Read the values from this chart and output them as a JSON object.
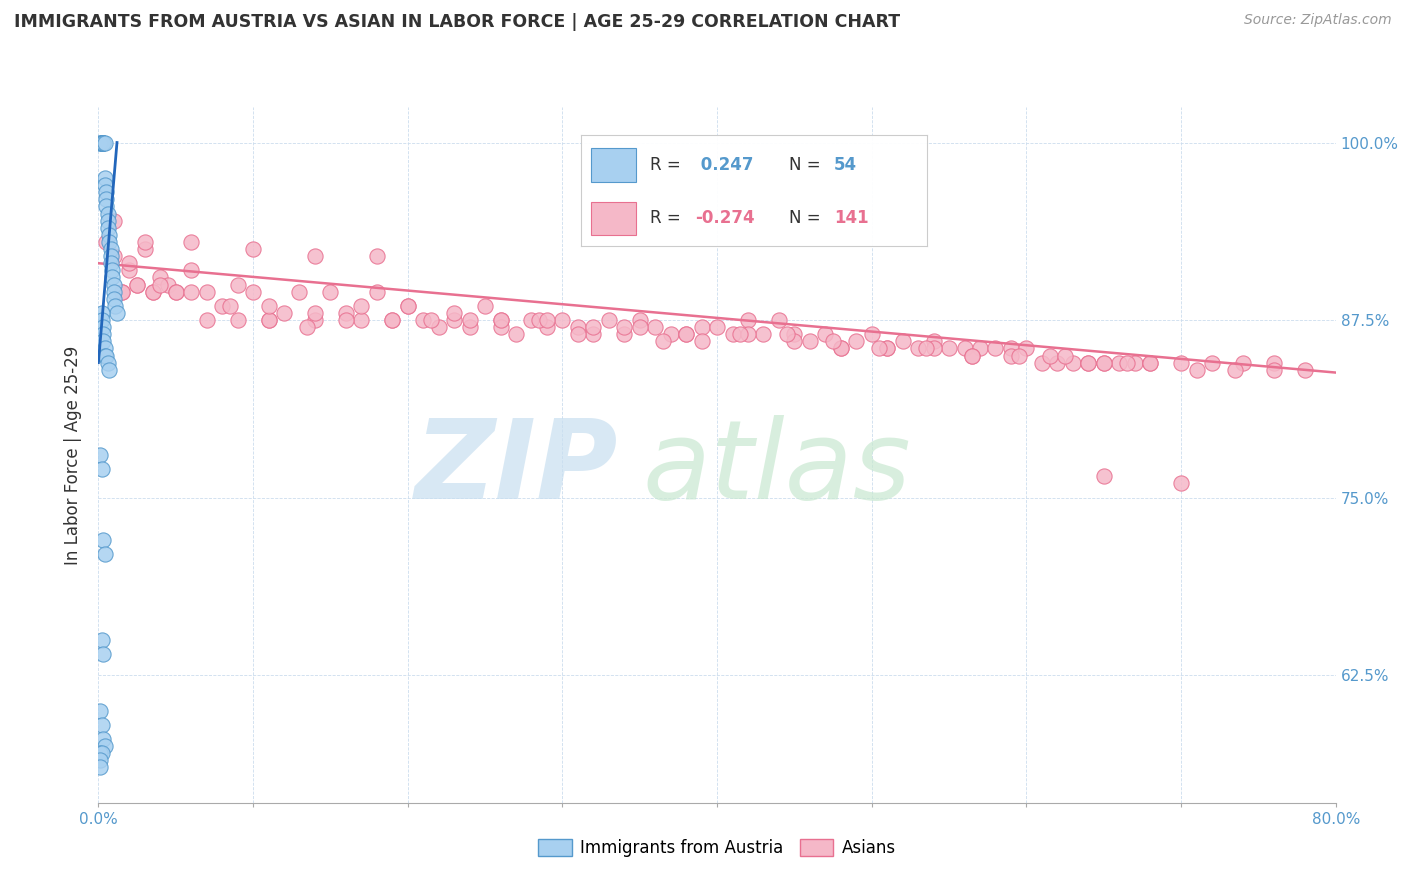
{
  "title": "IMMIGRANTS FROM AUSTRIA VS ASIAN IN LABOR FORCE | AGE 25-29 CORRELATION CHART",
  "source": "Source: ZipAtlas.com",
  "ylabel": "In Labor Force | Age 25-29",
  "xmin": 0.0,
  "xmax": 0.8,
  "ymin": 0.535,
  "ymax": 1.025,
  "x_ticks": [
    0.0,
    0.1,
    0.2,
    0.3,
    0.4,
    0.5,
    0.6,
    0.7,
    0.8
  ],
  "x_tick_labels_show": [
    "0.0%",
    "",
    "",
    "",
    "",
    "",
    "",
    "",
    "80.0%"
  ],
  "y_ticks": [
    0.625,
    0.75,
    0.875,
    1.0
  ],
  "y_tick_labels": [
    "62.5%",
    "75.0%",
    "87.5%",
    "100.0%"
  ],
  "austria_R": 0.247,
  "austria_N": 54,
  "asian_R": -0.274,
  "asian_N": 141,
  "austria_color": "#a8d0f0",
  "asian_color": "#f5b8c8",
  "austria_edge_color": "#5599cc",
  "asian_edge_color": "#e87090",
  "austria_line_color": "#2266bb",
  "asian_line_color": "#e87090",
  "watermark_zip_color": "#c8dff0",
  "watermark_atlas_color": "#c8e8d0",
  "austria_scatter_x": [
    0.001,
    0.001,
    0.002,
    0.002,
    0.002,
    0.003,
    0.003,
    0.003,
    0.003,
    0.004,
    0.004,
    0.004,
    0.005,
    0.005,
    0.005,
    0.006,
    0.006,
    0.006,
    0.007,
    0.007,
    0.008,
    0.008,
    0.008,
    0.009,
    0.009,
    0.01,
    0.01,
    0.01,
    0.011,
    0.012,
    0.002,
    0.002,
    0.003,
    0.003,
    0.003,
    0.004,
    0.004,
    0.005,
    0.006,
    0.007,
    0.001,
    0.002,
    0.003,
    0.004,
    0.002,
    0.003,
    0.001,
    0.002,
    0.003,
    0.004,
    0.001,
    0.002,
    0.001,
    0.001
  ],
  "austria_scatter_y": [
    1.0,
    1.0,
    1.0,
    1.0,
    1.0,
    1.0,
    1.0,
    1.0,
    1.0,
    1.0,
    0.975,
    0.97,
    0.965,
    0.96,
    0.955,
    0.95,
    0.945,
    0.94,
    0.935,
    0.93,
    0.925,
    0.92,
    0.915,
    0.91,
    0.905,
    0.9,
    0.895,
    0.89,
    0.885,
    0.88,
    0.88,
    0.875,
    0.87,
    0.865,
    0.86,
    0.855,
    0.85,
    0.85,
    0.845,
    0.84,
    0.78,
    0.77,
    0.72,
    0.71,
    0.65,
    0.64,
    0.6,
    0.59,
    0.58,
    0.575,
    0.57,
    0.57,
    0.565,
    0.56
  ],
  "asian_scatter_x": [
    0.005,
    0.01,
    0.015,
    0.02,
    0.025,
    0.03,
    0.035,
    0.04,
    0.045,
    0.05,
    0.06,
    0.07,
    0.08,
    0.09,
    0.1,
    0.11,
    0.12,
    0.13,
    0.14,
    0.15,
    0.16,
    0.17,
    0.18,
    0.19,
    0.2,
    0.21,
    0.22,
    0.23,
    0.24,
    0.25,
    0.26,
    0.27,
    0.28,
    0.29,
    0.3,
    0.31,
    0.32,
    0.33,
    0.34,
    0.35,
    0.36,
    0.37,
    0.38,
    0.39,
    0.4,
    0.41,
    0.42,
    0.43,
    0.44,
    0.45,
    0.46,
    0.47,
    0.48,
    0.49,
    0.5,
    0.51,
    0.52,
    0.53,
    0.54,
    0.55,
    0.56,
    0.57,
    0.58,
    0.59,
    0.6,
    0.61,
    0.62,
    0.63,
    0.64,
    0.65,
    0.66,
    0.67,
    0.68,
    0.7,
    0.72,
    0.74,
    0.76,
    0.015,
    0.025,
    0.035,
    0.05,
    0.07,
    0.09,
    0.11,
    0.135,
    0.16,
    0.19,
    0.215,
    0.24,
    0.26,
    0.285,
    0.31,
    0.34,
    0.365,
    0.39,
    0.42,
    0.45,
    0.48,
    0.51,
    0.54,
    0.565,
    0.59,
    0.615,
    0.64,
    0.665,
    0.02,
    0.04,
    0.06,
    0.085,
    0.11,
    0.14,
    0.17,
    0.2,
    0.23,
    0.26,
    0.29,
    0.32,
    0.35,
    0.38,
    0.415,
    0.445,
    0.475,
    0.505,
    0.535,
    0.565,
    0.595,
    0.625,
    0.65,
    0.68,
    0.71,
    0.735,
    0.76,
    0.78,
    0.01,
    0.03,
    0.06,
    0.1,
    0.14,
    0.18,
    0.65,
    0.7
  ],
  "asian_scatter_y": [
    0.93,
    0.92,
    0.895,
    0.91,
    0.9,
    0.925,
    0.895,
    0.905,
    0.9,
    0.895,
    0.91,
    0.895,
    0.885,
    0.9,
    0.895,
    0.875,
    0.88,
    0.895,
    0.875,
    0.895,
    0.88,
    0.875,
    0.895,
    0.875,
    0.885,
    0.875,
    0.87,
    0.875,
    0.87,
    0.885,
    0.875,
    0.865,
    0.875,
    0.87,
    0.875,
    0.87,
    0.865,
    0.875,
    0.865,
    0.875,
    0.87,
    0.865,
    0.865,
    0.87,
    0.87,
    0.865,
    0.875,
    0.865,
    0.875,
    0.865,
    0.86,
    0.865,
    0.855,
    0.86,
    0.865,
    0.855,
    0.86,
    0.855,
    0.86,
    0.855,
    0.855,
    0.855,
    0.855,
    0.855,
    0.855,
    0.845,
    0.845,
    0.845,
    0.845,
    0.845,
    0.845,
    0.845,
    0.845,
    0.845,
    0.845,
    0.845,
    0.845,
    0.895,
    0.9,
    0.895,
    0.895,
    0.875,
    0.875,
    0.875,
    0.87,
    0.875,
    0.875,
    0.875,
    0.875,
    0.87,
    0.875,
    0.865,
    0.87,
    0.86,
    0.86,
    0.865,
    0.86,
    0.855,
    0.855,
    0.855,
    0.85,
    0.85,
    0.85,
    0.845,
    0.845,
    0.915,
    0.9,
    0.895,
    0.885,
    0.885,
    0.88,
    0.885,
    0.885,
    0.88,
    0.875,
    0.875,
    0.87,
    0.87,
    0.865,
    0.865,
    0.865,
    0.86,
    0.855,
    0.855,
    0.85,
    0.85,
    0.85,
    0.845,
    0.845,
    0.84,
    0.84,
    0.84,
    0.84,
    0.945,
    0.93,
    0.93,
    0.925,
    0.92,
    0.92,
    0.765,
    0.76
  ]
}
